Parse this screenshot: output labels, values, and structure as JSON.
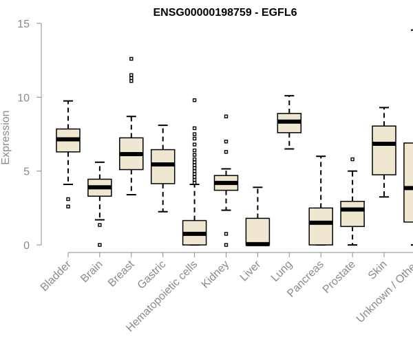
{
  "chart_data": {
    "type": "boxplot",
    "title": "ENSG00000198759 - EGFL6",
    "ylabel": "Expression",
    "xlabel": "",
    "ylim": [
      0,
      15
    ],
    "yticks": [
      0,
      5,
      10,
      15
    ],
    "grid": false,
    "box_color": "#efe7cf",
    "categories": [
      "Bladder",
      "Brain",
      "Breast",
      "Gastric",
      "Hematopoietic cells",
      "Kidney",
      "Liver",
      "Lung",
      "Pancreas",
      "Prostate",
      "Skin",
      "Unknown / Other"
    ],
    "boxes": [
      {
        "min": 4.1,
        "q1": 6.3,
        "median": 7.15,
        "q3": 7.85,
        "max": 9.75,
        "outliers": [
          3.1,
          2.6
        ]
      },
      {
        "min": 1.7,
        "q1": 3.3,
        "median": 3.9,
        "q3": 4.45,
        "max": 5.6,
        "outliers": [
          1.35,
          0.0
        ]
      },
      {
        "min": 3.4,
        "q1": 5.1,
        "median": 6.15,
        "q3": 7.25,
        "max": 8.7,
        "outliers": [
          11.1,
          11.3,
          11.5,
          12.6
        ]
      },
      {
        "min": 2.25,
        "q1": 4.15,
        "median": 5.45,
        "q3": 6.45,
        "max": 8.1,
        "outliers": []
      },
      {
        "min": 0.0,
        "q1": 0.0,
        "median": 0.75,
        "q3": 1.65,
        "max": 4.1,
        "outliers": [
          4.2,
          4.4,
          4.6,
          4.8,
          5.0,
          5.2,
          5.4,
          5.6,
          5.8,
          6.1,
          6.4,
          6.8,
          7.2,
          7.5,
          7.9,
          9.8
        ]
      },
      {
        "min": 2.35,
        "q1": 3.7,
        "median": 4.2,
        "q3": 4.7,
        "max": 5.15,
        "outliers": [
          8.7,
          7.0,
          6.3,
          0.75,
          0.0
        ]
      },
      {
        "min": 0.0,
        "q1": 0.0,
        "median": 0.05,
        "q3": 1.8,
        "max": 3.9,
        "outliers": []
      },
      {
        "min": 6.5,
        "q1": 7.6,
        "median": 8.35,
        "q3": 8.9,
        "max": 10.1,
        "outliers": []
      },
      {
        "min": 0.0,
        "q1": 0.0,
        "median": 1.5,
        "q3": 2.5,
        "max": 6.0,
        "outliers": []
      },
      {
        "min": 0.0,
        "q1": 1.25,
        "median": 2.4,
        "q3": 2.95,
        "max": 5.0,
        "outliers": [
          5.8
        ]
      },
      {
        "min": 3.25,
        "q1": 4.75,
        "median": 6.85,
        "q3": 8.05,
        "max": 9.3,
        "outliers": []
      },
      {
        "min": 0.0,
        "q1": 1.55,
        "median": 3.85,
        "q3": 6.9,
        "max": 14.55,
        "outliers": []
      }
    ]
  }
}
